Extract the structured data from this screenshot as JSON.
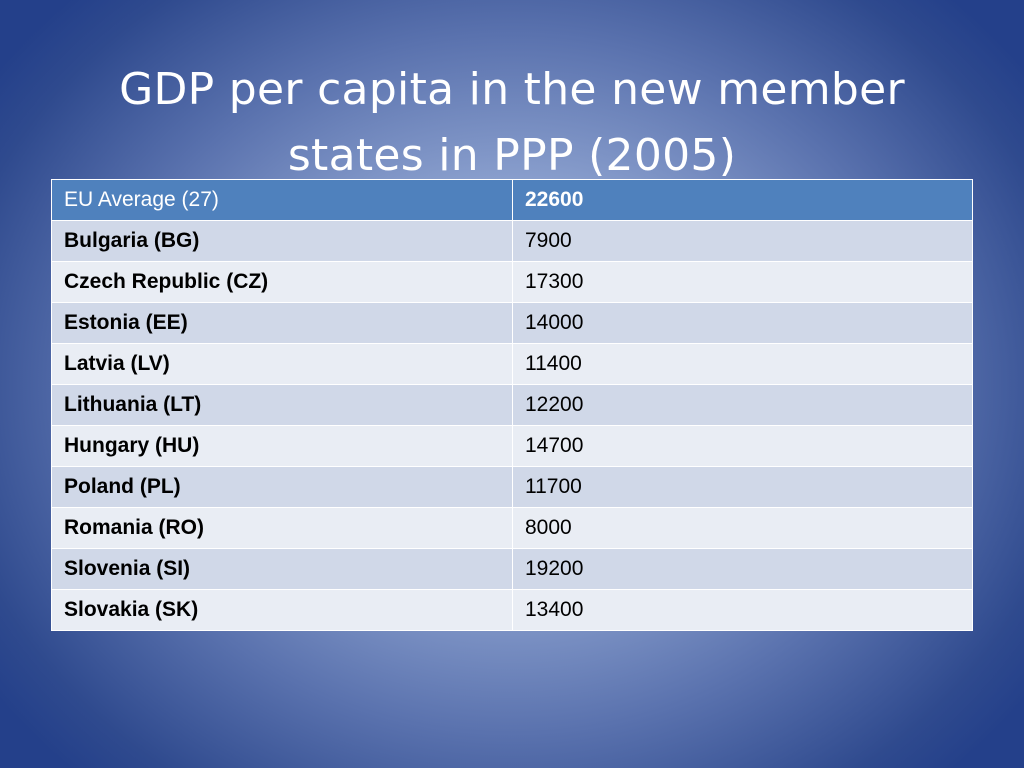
{
  "title": {
    "line1": "GDP per capita in the new member",
    "line2": "states in PPP (2005)"
  },
  "table": {
    "header": {
      "country": "EU Average (27)",
      "value": "22600"
    },
    "rows": [
      {
        "country": "Bulgaria (BG)",
        "value": "7900"
      },
      {
        "country": "Czech Republic (CZ)",
        "value": "17300"
      },
      {
        "country": "Estonia (EE)",
        "value": "14000"
      },
      {
        "country": "Latvia (LV)",
        "value": "11400"
      },
      {
        "country": "Lithuania (LT)",
        "value": "12200"
      },
      {
        "country": "Hungary (HU)",
        "value": "14700"
      },
      {
        "country": "Poland (PL)",
        "value": "11700"
      },
      {
        "country": "Romania (RO)",
        "value": "8000"
      },
      {
        "country": "Slovenia (SI)",
        "value": "19200"
      },
      {
        "country": "Slovakia (SK)",
        "value": "13400"
      }
    ]
  },
  "colors": {
    "header_fill": "#4f81bd",
    "band_dark": "#d0d8e8",
    "band_light": "#e9edf4",
    "background_center": "#b9c8e8",
    "background_edge": "#24408a"
  }
}
